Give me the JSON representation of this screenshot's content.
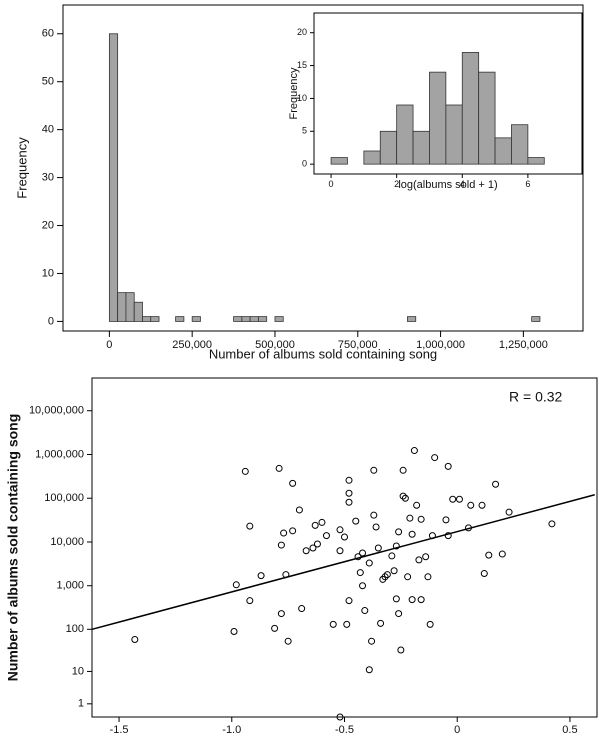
{
  "chart_data": [
    {
      "type": "histogram",
      "x_label": "Number of albums sold containing song",
      "y_label": "Frequency",
      "bins": [
        0,
        25000,
        50000,
        75000,
        100000,
        125000,
        150000,
        175000,
        200000,
        225000,
        250000,
        275000,
        300000,
        325000,
        350000,
        375000,
        400000,
        425000,
        450000,
        475000,
        500000,
        525000,
        550000,
        575000,
        600000,
        625000,
        650000,
        675000,
        700000,
        725000,
        750000,
        775000,
        800000,
        825000,
        850000,
        875000,
        900000,
        925000,
        950000,
        975000,
        1000000,
        1025000,
        1050000,
        1075000,
        1100000,
        1125000,
        1150000,
        1175000,
        1200000,
        1225000,
        1250000,
        1275000,
        1300000
      ],
      "values": [
        60,
        6,
        6,
        4,
        1,
        1,
        0,
        0,
        1,
        0,
        1,
        0,
        0,
        0,
        0,
        1,
        1,
        1,
        1,
        0,
        1,
        0,
        0,
        0,
        0,
        0,
        0,
        0,
        0,
        0,
        0,
        0,
        0,
        0,
        0,
        0,
        1,
        0,
        0,
        0,
        0,
        0,
        0,
        0,
        0,
        0,
        0,
        0,
        0,
        0,
        0,
        1
      ],
      "color": "#a3a3a3",
      "xlim": [
        -140000,
        1430000
      ],
      "xticks": [
        0,
        {
          "value": 250000,
          "label": "250,000"
        },
        {
          "value": 500000,
          "label": "500,000"
        },
        {
          "value": 750000,
          "label": "750,000"
        },
        {
          "value": 1000000,
          "label": "1,000,000"
        },
        {
          "value": 1250000,
          "label": "1,250,000"
        }
      ],
      "ylim": [
        -2,
        66
      ],
      "yticks": [
        0,
        10,
        20,
        30,
        40,
        50,
        60
      ]
    },
    {
      "type": "histogram",
      "x_label": "log(albums sold + 1)",
      "y_label": "Frequency",
      "bins": [
        0,
        0.5,
        1,
        1.5,
        2,
        2.5,
        3,
        3.5,
        4,
        4.5,
        5,
        5.5,
        6,
        6.5
      ],
      "values": [
        1,
        0,
        2,
        5,
        9,
        5,
        14,
        9,
        17,
        14,
        4,
        6,
        1
      ],
      "color": "#a3a3a3",
      "xlim": [
        -0.52,
        7.65
      ],
      "xticks": [
        0,
        2,
        4,
        6
      ],
      "ylim": [
        -1.5,
        23
      ],
      "yticks": [
        0,
        5,
        10,
        15,
        20
      ]
    },
    {
      "type": "scatter",
      "y_label": "Number of albums sold containing song",
      "annotation": "R = 0.32",
      "x": [
        -1.43,
        -0.99,
        -0.98,
        -0.94,
        -0.92,
        -0.92,
        -0.87,
        -0.81,
        -0.79,
        -0.78,
        -0.78,
        -0.77,
        -0.76,
        -0.75,
        -0.73,
        -0.73,
        -0.7,
        -0.69,
        -0.67,
        -0.64,
        -0.63,
        -0.62,
        -0.6,
        -0.58,
        -0.55,
        -0.52,
        -0.52,
        -0.52,
        -0.5,
        -0.48,
        -0.48,
        -0.48,
        -0.49,
        -0.48,
        -0.45,
        -0.44,
        -0.43,
        -0.42,
        -0.42,
        -0.41,
        -0.39,
        -0.38,
        -0.39,
        -0.37,
        -0.37,
        -0.36,
        -0.35,
        -0.34,
        -0.33,
        -0.32,
        -0.31,
        -0.29,
        -0.28,
        -0.27,
        -0.27,
        -0.26,
        -0.26,
        -0.25,
        -0.24,
        -0.24,
        -0.23,
        -0.22,
        -0.21,
        -0.2,
        -0.2,
        -0.19,
        -0.18,
        -0.17,
        -0.16,
        -0.16,
        -0.14,
        -0.13,
        -0.12,
        -0.11,
        -0.1,
        -0.05,
        -0.04,
        -0.04,
        -0.02,
        0.01,
        0.05,
        0.06,
        0.11,
        0.12,
        0.14,
        0.17,
        0.2,
        0.23,
        0.42
      ],
      "values": [
        58,
        89,
        1050,
        410000,
        455,
        23000,
        1700,
        105,
        480000,
        8500,
        230,
        16000,
        1800,
        53,
        219000,
        18000,
        54000,
        300,
        6300,
        7300,
        24000,
        9000,
        28000,
        14000,
        130,
        19000,
        0,
        6300,
        13000,
        257000,
        130000,
        81000,
        130,
        455,
        30000,
        4600,
        2000,
        5600,
        1000,
        270,
        3300,
        53,
        11,
        41000,
        435000,
        22000,
        7300,
        137,
        1400,
        1600,
        1800,
        4800,
        2200,
        8100,
        500,
        17000,
        230,
        33,
        112000,
        435000,
        100000,
        1600,
        35000,
        480,
        15000,
        1230000,
        69000,
        3900,
        480,
        33000,
        4600,
        1600,
        130,
        14000,
        850000,
        32000,
        14000,
        535000,
        95000,
        95000,
        21000,
        69000,
        69000,
        1900,
        5000,
        209000,
        5300,
        48000,
        26000
      ],
      "fit_line": {
        "x": [
          -1.62,
          0.61
        ],
        "values": [
          100,
          120000
        ]
      },
      "xlim": [
        -1.62,
        0.62
      ],
      "xticks": [
        -1.5,
        {
          "value": -1,
          "label": "-1.0"
        },
        -0.5,
        0,
        0.5
      ],
      "ylim": [
        0,
        56000000
      ],
      "yscale": "log1p",
      "yticks": [
        1,
        10,
        100,
        {
          "value": 1000,
          "label": "1,000"
        },
        {
          "value": 10000,
          "label": "10,000"
        },
        {
          "value": 100000,
          "label": "100,000"
        },
        {
          "value": 1000000,
          "label": "1,000,000"
        },
        {
          "value": 10000000,
          "label": "10,000,000"
        }
      ]
    }
  ]
}
